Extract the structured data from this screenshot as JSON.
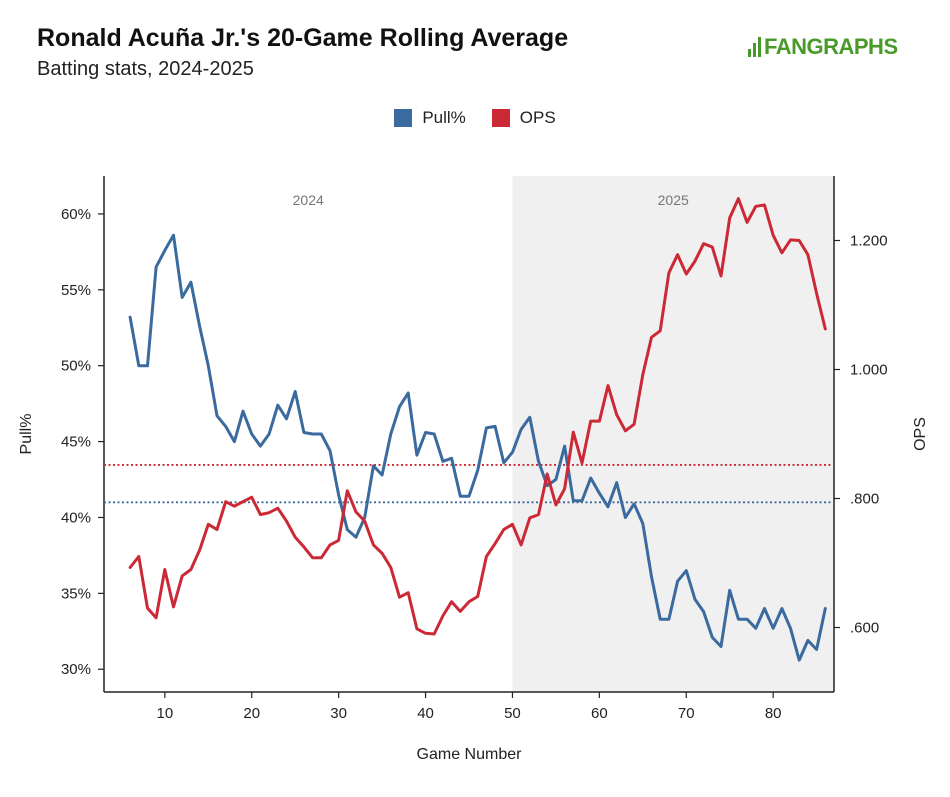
{
  "title": "Ronald Acuña Jr.'s 20-Game Rolling Average",
  "subtitle": "Batting stats, 2024-2025",
  "logo_text": "FANGRAPHS",
  "colors": {
    "pull": "#3a6a9e",
    "ops": "#cc2936",
    "shade": "#f0f0f0",
    "logo": "#4a9a2a"
  },
  "legend": [
    {
      "label": "Pull%",
      "color": "#3a6a9e"
    },
    {
      "label": "OPS",
      "color": "#cc2936"
    }
  ],
  "chart_data": {
    "type": "line",
    "xlabel": "Game Number",
    "ylabel_left": "Pull%",
    "ylabel_right": "OPS",
    "xlim": [
      3,
      87
    ],
    "ylim_left": [
      0.285,
      0.625
    ],
    "ylim_right": [
      0.5,
      1.3
    ],
    "x_ticks": [
      10,
      20,
      30,
      40,
      50,
      60,
      70,
      80
    ],
    "y_ticks_left": [
      0.3,
      0.35,
      0.4,
      0.45,
      0.5,
      0.55,
      0.6
    ],
    "y_tick_labels_left": [
      "30%",
      "35%",
      "40%",
      "45%",
      "50%",
      "55%",
      "60%"
    ],
    "y_ticks_right": [
      0.6,
      0.8,
      1.0,
      1.2
    ],
    "y_tick_labels_right": [
      ".600",
      ".800",
      "1.000",
      "1.200"
    ],
    "seasons": [
      {
        "label": "2024",
        "x_start": 3,
        "x_end": 50,
        "shaded": false
      },
      {
        "label": "2025",
        "x_start": 50,
        "x_end": 87,
        "shaded": true
      }
    ],
    "reference_lines": [
      {
        "series": "Pull%",
        "axis": "left",
        "value": 0.41
      },
      {
        "series": "OPS",
        "axis": "right",
        "value": 0.852
      }
    ],
    "x": [
      6,
      7,
      8,
      9,
      10,
      11,
      12,
      13,
      14,
      15,
      16,
      17,
      18,
      19,
      20,
      21,
      22,
      23,
      24,
      25,
      26,
      27,
      28,
      29,
      30,
      31,
      32,
      33,
      34,
      35,
      36,
      37,
      38,
      39,
      40,
      41,
      42,
      43,
      44,
      45,
      46,
      47,
      48,
      49,
      50,
      51,
      52,
      53,
      54,
      55,
      56,
      57,
      58,
      59,
      60,
      61,
      62,
      63,
      64,
      65,
      66,
      67,
      68,
      69,
      70,
      71,
      72,
      73,
      74,
      75,
      76,
      77,
      78,
      79,
      80,
      81,
      82,
      83,
      84,
      85,
      86
    ],
    "series": [
      {
        "name": "Pull%",
        "axis": "left",
        "values": [
          0.532,
          0.5,
          0.5,
          0.565,
          0.576,
          0.586,
          0.545,
          0.555,
          0.526,
          0.5,
          0.467,
          0.46,
          0.45,
          0.47,
          0.455,
          0.447,
          0.455,
          0.474,
          0.465,
          0.483,
          0.456,
          0.455,
          0.455,
          0.444,
          0.415,
          0.392,
          0.387,
          0.4,
          0.434,
          0.428,
          0.455,
          0.473,
          0.482,
          0.441,
          0.456,
          0.455,
          0.437,
          0.439,
          0.414,
          0.414,
          0.431,
          0.459,
          0.46,
          0.436,
          0.443,
          0.458,
          0.466,
          0.437,
          0.421,
          0.425,
          0.447,
          0.411,
          0.411,
          0.426,
          0.416,
          0.407,
          0.423,
          0.4,
          0.409,
          0.396,
          0.361,
          0.333,
          0.333,
          0.358,
          0.365,
          0.346,
          0.338,
          0.321,
          0.315,
          0.352,
          0.333,
          0.333,
          0.327,
          0.34,
          0.327,
          0.34,
          0.327,
          0.306,
          0.319,
          0.313,
          0.34
        ]
      },
      {
        "name": "OPS",
        "axis": "right",
        "values": [
          0.693,
          0.71,
          0.63,
          0.615,
          0.69,
          0.632,
          0.68,
          0.69,
          0.72,
          0.76,
          0.752,
          0.795,
          0.788,
          0.795,
          0.802,
          0.775,
          0.778,
          0.785,
          0.765,
          0.74,
          0.725,
          0.708,
          0.708,
          0.728,
          0.735,
          0.812,
          0.779,
          0.765,
          0.728,
          0.715,
          0.693,
          0.647,
          0.654,
          0.598,
          0.591,
          0.59,
          0.618,
          0.64,
          0.625,
          0.64,
          0.648,
          0.71,
          0.73,
          0.752,
          0.76,
          0.728,
          0.77,
          0.775,
          0.838,
          0.79,
          0.815,
          0.903,
          0.855,
          0.92,
          0.92,
          0.975,
          0.93,
          0.905,
          0.915,
          0.992,
          1.05,
          1.06,
          1.15,
          1.178,
          1.148,
          1.168,
          1.195,
          1.19,
          1.145,
          1.235,
          1.265,
          1.228,
          1.253,
          1.255,
          1.208,
          1.181,
          1.201,
          1.2,
          1.178,
          1.118,
          1.063
        ]
      }
    ]
  }
}
